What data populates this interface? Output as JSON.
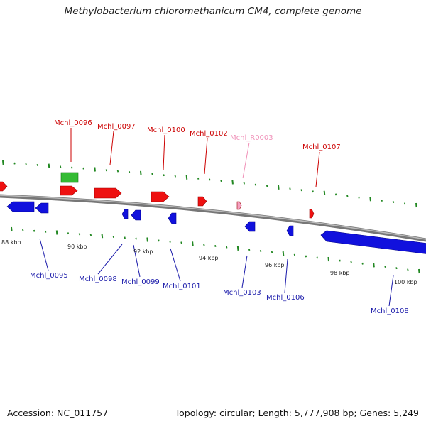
{
  "title": "Methylobacterium chloromethanicum CM4, complete genome",
  "footer": {
    "accession": "Accession: NC_011757",
    "summary": "Topology: circular; Length: 5,777,908 bp; Genes: 5,249"
  },
  "colors": {
    "forward_gene": "#ee1111",
    "reverse_gene": "#1111dd",
    "rna_gene": "#f4a0c0",
    "other_feature": "#33bb33",
    "backbone": "#888888",
    "tick": "#228822",
    "forward_label": "#cc0000",
    "reverse_label": "#1a1aaa",
    "rna_label": "#f090b8"
  },
  "scale_ticks": [
    {
      "label": "88 kbp"
    },
    {
      "label": "90 kbp"
    },
    {
      "label": "92 kbp"
    },
    {
      "label": "94 kbp"
    },
    {
      "label": "96 kbp"
    },
    {
      "label": "98 kbp"
    },
    {
      "label": "100 kbp"
    }
  ],
  "gene_labels": [
    {
      "label": "Mchl_0096",
      "strand": "forward"
    },
    {
      "label": "Mchl_0097",
      "strand": "forward"
    },
    {
      "label": "Mchl_0100",
      "strand": "forward"
    },
    {
      "label": "Mchl_0102",
      "strand": "forward"
    },
    {
      "label": "Mchl_R0003",
      "strand": "rna"
    },
    {
      "label": "Mchl_0107",
      "strand": "forward"
    },
    {
      "label": "Mchl_0095",
      "strand": "reverse"
    },
    {
      "label": "Mchl_0098",
      "strand": "reverse"
    },
    {
      "label": "Mchl_0099",
      "strand": "reverse"
    },
    {
      "label": "Mchl_0101",
      "strand": "reverse"
    },
    {
      "label": "Mchl_0103",
      "strand": "reverse"
    },
    {
      "label": "Mchl_0106",
      "strand": "reverse"
    },
    {
      "label": "Mchl_0108",
      "strand": "reverse"
    }
  ]
}
